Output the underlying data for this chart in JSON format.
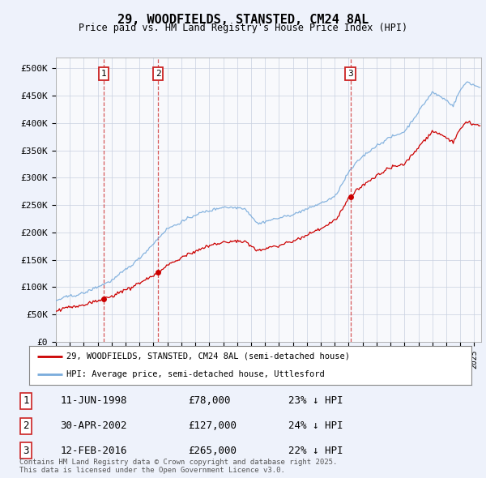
{
  "title": "29, WOODFIELDS, STANSTED, CM24 8AL",
  "subtitle": "Price paid vs. HM Land Registry's House Price Index (HPI)",
  "ylabel_ticks": [
    "£0",
    "£50K",
    "£100K",
    "£150K",
    "£200K",
    "£250K",
    "£300K",
    "£350K",
    "£400K",
    "£450K",
    "£500K"
  ],
  "ytick_values": [
    0,
    50000,
    100000,
    150000,
    200000,
    250000,
    300000,
    350000,
    400000,
    450000,
    500000
  ],
  "ylim": [
    0,
    520000
  ],
  "xlim_start": 1995.0,
  "xlim_end": 2025.5,
  "legend_line1": "29, WOODFIELDS, STANSTED, CM24 8AL (semi-detached house)",
  "legend_line2": "HPI: Average price, semi-detached house, Uttlesford",
  "line_color_red": "#cc0000",
  "line_color_blue": "#7aacdc",
  "sale_dates": [
    1998.44,
    2002.33,
    2016.12
  ],
  "sale_values": [
    78000,
    127000,
    265000
  ],
  "table_data": [
    [
      "1",
      "11-JUN-1998",
      "£78,000",
      "23% ↓ HPI"
    ],
    [
      "2",
      "30-APR-2002",
      "£127,000",
      "24% ↓ HPI"
    ],
    [
      "3",
      "12-FEB-2016",
      "£265,000",
      "22% ↓ HPI"
    ]
  ],
  "hpi_discount": 0.77,
  "footnote": "Contains HM Land Registry data © Crown copyright and database right 2025.\nThis data is licensed under the Open Government Licence v3.0.",
  "bg_color": "#eef2fb",
  "plot_bg": "#ffffff",
  "grid_color": "#c8d0e0"
}
